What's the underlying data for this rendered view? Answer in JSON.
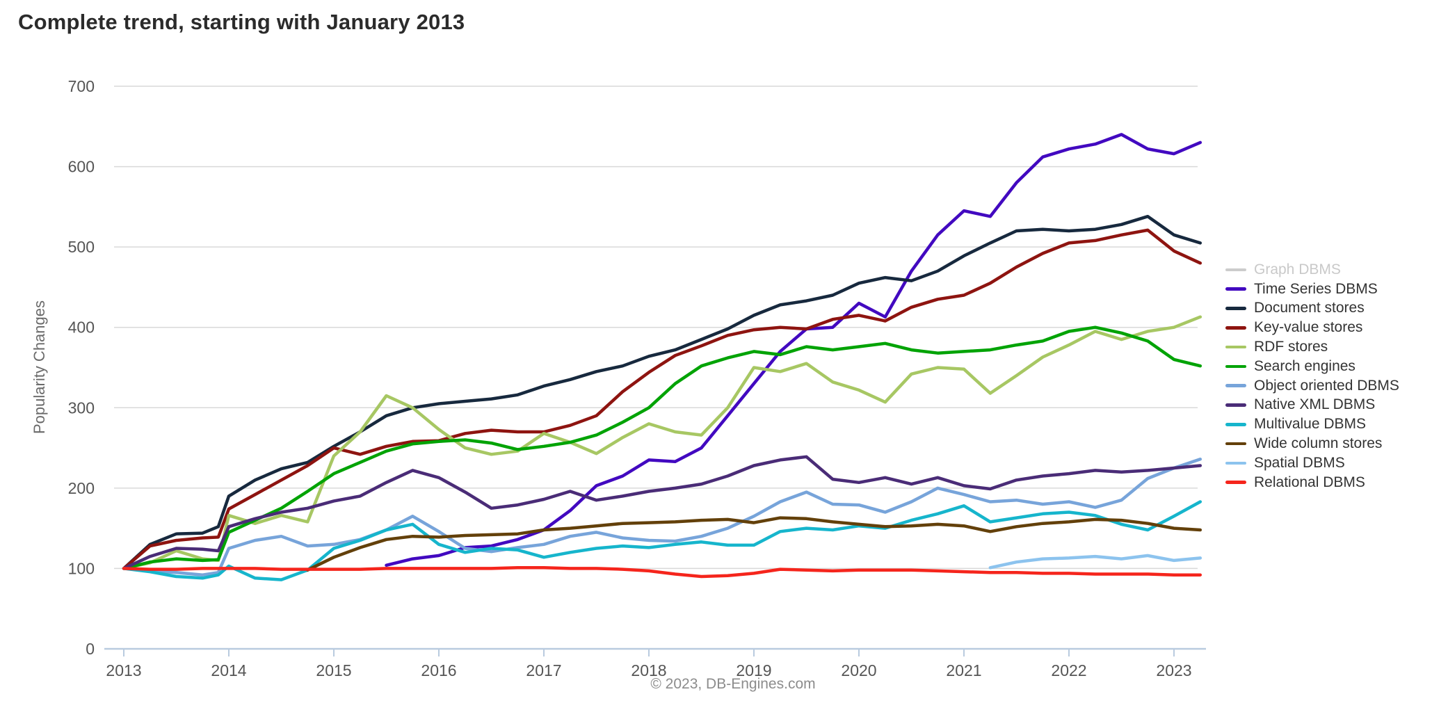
{
  "page": {
    "title": "Complete trend, starting with January 2013",
    "footer": "© 2023, DB-Engines.com"
  },
  "colors": {
    "gridline": "#d9d9d9",
    "axis_line": "#b9cbdf",
    "tick_label": "#555555",
    "legend_text": "#333333",
    "legend_text_inactive": "#c9c9c9"
  },
  "chart_data": {
    "type": "line",
    "title": "Complete trend, starting with January 2013",
    "xlabel": "",
    "ylabel": "Popularity Changes",
    "ylim": [
      0,
      700
    ],
    "grid": "horizontal",
    "legend_position": "right",
    "y_ticks": [
      0,
      100,
      200,
      300,
      400,
      500,
      600,
      700
    ],
    "x_ticks": [
      2013,
      2014,
      2015,
      2016,
      2017,
      2018,
      2019,
      2020,
      2021,
      2022,
      2023
    ],
    "x": [
      2013,
      2013.25,
      2013.5,
      2013.75,
      2013.9,
      2014,
      2014.25,
      2014.5,
      2014.75,
      2015,
      2015.25,
      2015.5,
      2015.75,
      2016,
      2016.25,
      2016.5,
      2016.75,
      2017,
      2017.25,
      2017.5,
      2017.75,
      2018,
      2018.25,
      2018.5,
      2018.75,
      2019,
      2019.25,
      2019.5,
      2019.75,
      2020,
      2020.25,
      2020.5,
      2020.75,
      2021,
      2021.25,
      2021.5,
      2021.75,
      2022,
      2022.25,
      2022.5,
      2022.75,
      2023,
      2023.25
    ],
    "series": [
      {
        "label": "Graph DBMS",
        "color": "#cccccc",
        "active": false,
        "values": null
      },
      {
        "label": "Time Series DBMS",
        "color": "#4209c0",
        "active": true,
        "values": [
          null,
          null,
          null,
          null,
          null,
          null,
          null,
          null,
          null,
          null,
          null,
          104,
          112,
          116,
          126,
          128,
          136,
          148,
          172,
          203,
          215,
          235,
          233,
          250,
          290,
          330,
          370,
          398,
          400,
          430,
          413,
          470,
          515,
          545,
          538,
          580,
          612,
          622,
          628,
          640,
          622,
          616,
          630
        ]
      },
      {
        "label": "Document stores",
        "color": "#17293e",
        "active": true,
        "values": [
          100,
          130,
          143,
          144,
          152,
          190,
          210,
          224,
          232,
          252,
          270,
          290,
          300,
          305,
          308,
          311,
          316,
          327,
          335,
          345,
          352,
          364,
          372,
          385,
          398,
          415,
          428,
          433,
          440,
          455,
          462,
          458,
          470,
          489,
          505,
          520,
          522,
          520,
          522,
          528,
          538,
          515,
          505
        ]
      },
      {
        "label": "Key-value stores",
        "color": "#8e1410",
        "active": true,
        "values": [
          100,
          128,
          135,
          138,
          139,
          174,
          192,
          210,
          228,
          250,
          242,
          252,
          258,
          259,
          268,
          272,
          270,
          270,
          278,
          290,
          320,
          344,
          365,
          377,
          390,
          397,
          400,
          398,
          410,
          415,
          408,
          425,
          435,
          440,
          455,
          475,
          492,
          505,
          508,
          515,
          521,
          495,
          480
        ]
      },
      {
        "label": "RDF stores",
        "color": "#a7c763",
        "active": true,
        "values": [
          100,
          107,
          122,
          112,
          110,
          166,
          156,
          166,
          158,
          240,
          270,
          315,
          300,
          273,
          250,
          242,
          246,
          268,
          257,
          243,
          263,
          280,
          270,
          266,
          300,
          350,
          345,
          355,
          332,
          322,
          307,
          342,
          350,
          348,
          318,
          340,
          363,
          378,
          395,
          385,
          395,
          400,
          413
        ]
      },
      {
        "label": "Search engines",
        "color": "#00a305",
        "active": true,
        "values": [
          100,
          108,
          112,
          110,
          111,
          145,
          160,
          175,
          196,
          218,
          232,
          246,
          255,
          258,
          260,
          256,
          248,
          252,
          257,
          266,
          282,
          300,
          330,
          352,
          362,
          370,
          366,
          376,
          372,
          376,
          380,
          372,
          368,
          370,
          372,
          378,
          383,
          395,
          400,
          393,
          383,
          360,
          352
        ]
      },
      {
        "label": "Object oriented DBMS",
        "color": "#77a4da",
        "active": true,
        "values": [
          100,
          97,
          95,
          92,
          95,
          125,
          135,
          140,
          128,
          130,
          136,
          148,
          165,
          146,
          125,
          121,
          126,
          130,
          140,
          145,
          138,
          135,
          134,
          140,
          150,
          165,
          183,
          195,
          180,
          179,
          170,
          183,
          200,
          192,
          183,
          185,
          180,
          183,
          176,
          185,
          212,
          225,
          236
        ]
      },
      {
        "label": "Native XML DBMS",
        "color": "#4a2c77",
        "active": true,
        "values": [
          100,
          115,
          125,
          124,
          122,
          152,
          162,
          170,
          175,
          184,
          190,
          207,
          222,
          213,
          195,
          175,
          179,
          186,
          196,
          185,
          190,
          196,
          200,
          205,
          215,
          228,
          235,
          239,
          211,
          207,
          213,
          205,
          213,
          203,
          199,
          210,
          215,
          218,
          222,
          220,
          222,
          225,
          228
        ]
      },
      {
        "label": "Multivalue DBMS",
        "color": "#16b5cc",
        "active": true,
        "values": [
          100,
          96,
          90,
          88,
          92,
          103,
          88,
          86,
          98,
          125,
          135,
          148,
          155,
          130,
          120,
          125,
          123,
          114,
          120,
          125,
          128,
          126,
          130,
          133,
          129,
          129,
          146,
          150,
          148,
          153,
          150,
          160,
          168,
          178,
          158,
          163,
          168,
          170,
          166,
          155,
          148,
          165,
          183
        ]
      },
      {
        "label": "Wide column stores",
        "color": "#63400a",
        "active": true,
        "values": [
          null,
          null,
          null,
          null,
          null,
          null,
          null,
          null,
          98,
          114,
          126,
          136,
          140,
          139,
          141,
          142,
          143,
          148,
          150,
          153,
          156,
          157,
          158,
          160,
          161,
          157,
          163,
          162,
          158,
          155,
          152,
          153,
          155,
          153,
          146,
          152,
          156,
          158,
          161,
          160,
          156,
          150,
          148
        ]
      },
      {
        "label": "Spatial DBMS",
        "color": "#8cc3ee",
        "active": true,
        "values": [
          null,
          null,
          null,
          null,
          null,
          null,
          null,
          null,
          null,
          null,
          null,
          null,
          null,
          null,
          null,
          null,
          null,
          null,
          null,
          null,
          null,
          null,
          null,
          null,
          null,
          null,
          null,
          null,
          null,
          null,
          null,
          null,
          null,
          null,
          101,
          108,
          112,
          113,
          115,
          112,
          116,
          110,
          113
        ]
      },
      {
        "label": "Relational DBMS",
        "color": "#f5251c",
        "active": true,
        "values": [
          100,
          99,
          99,
          100,
          100,
          100,
          100,
          99,
          99,
          99,
          99,
          100,
          100,
          100,
          100,
          100,
          101,
          101,
          100,
          100,
          99,
          97,
          93,
          90,
          91,
          94,
          99,
          98,
          97,
          98,
          98,
          98,
          97,
          96,
          95,
          95,
          94,
          94,
          93,
          93,
          93,
          92,
          92
        ]
      }
    ]
  }
}
